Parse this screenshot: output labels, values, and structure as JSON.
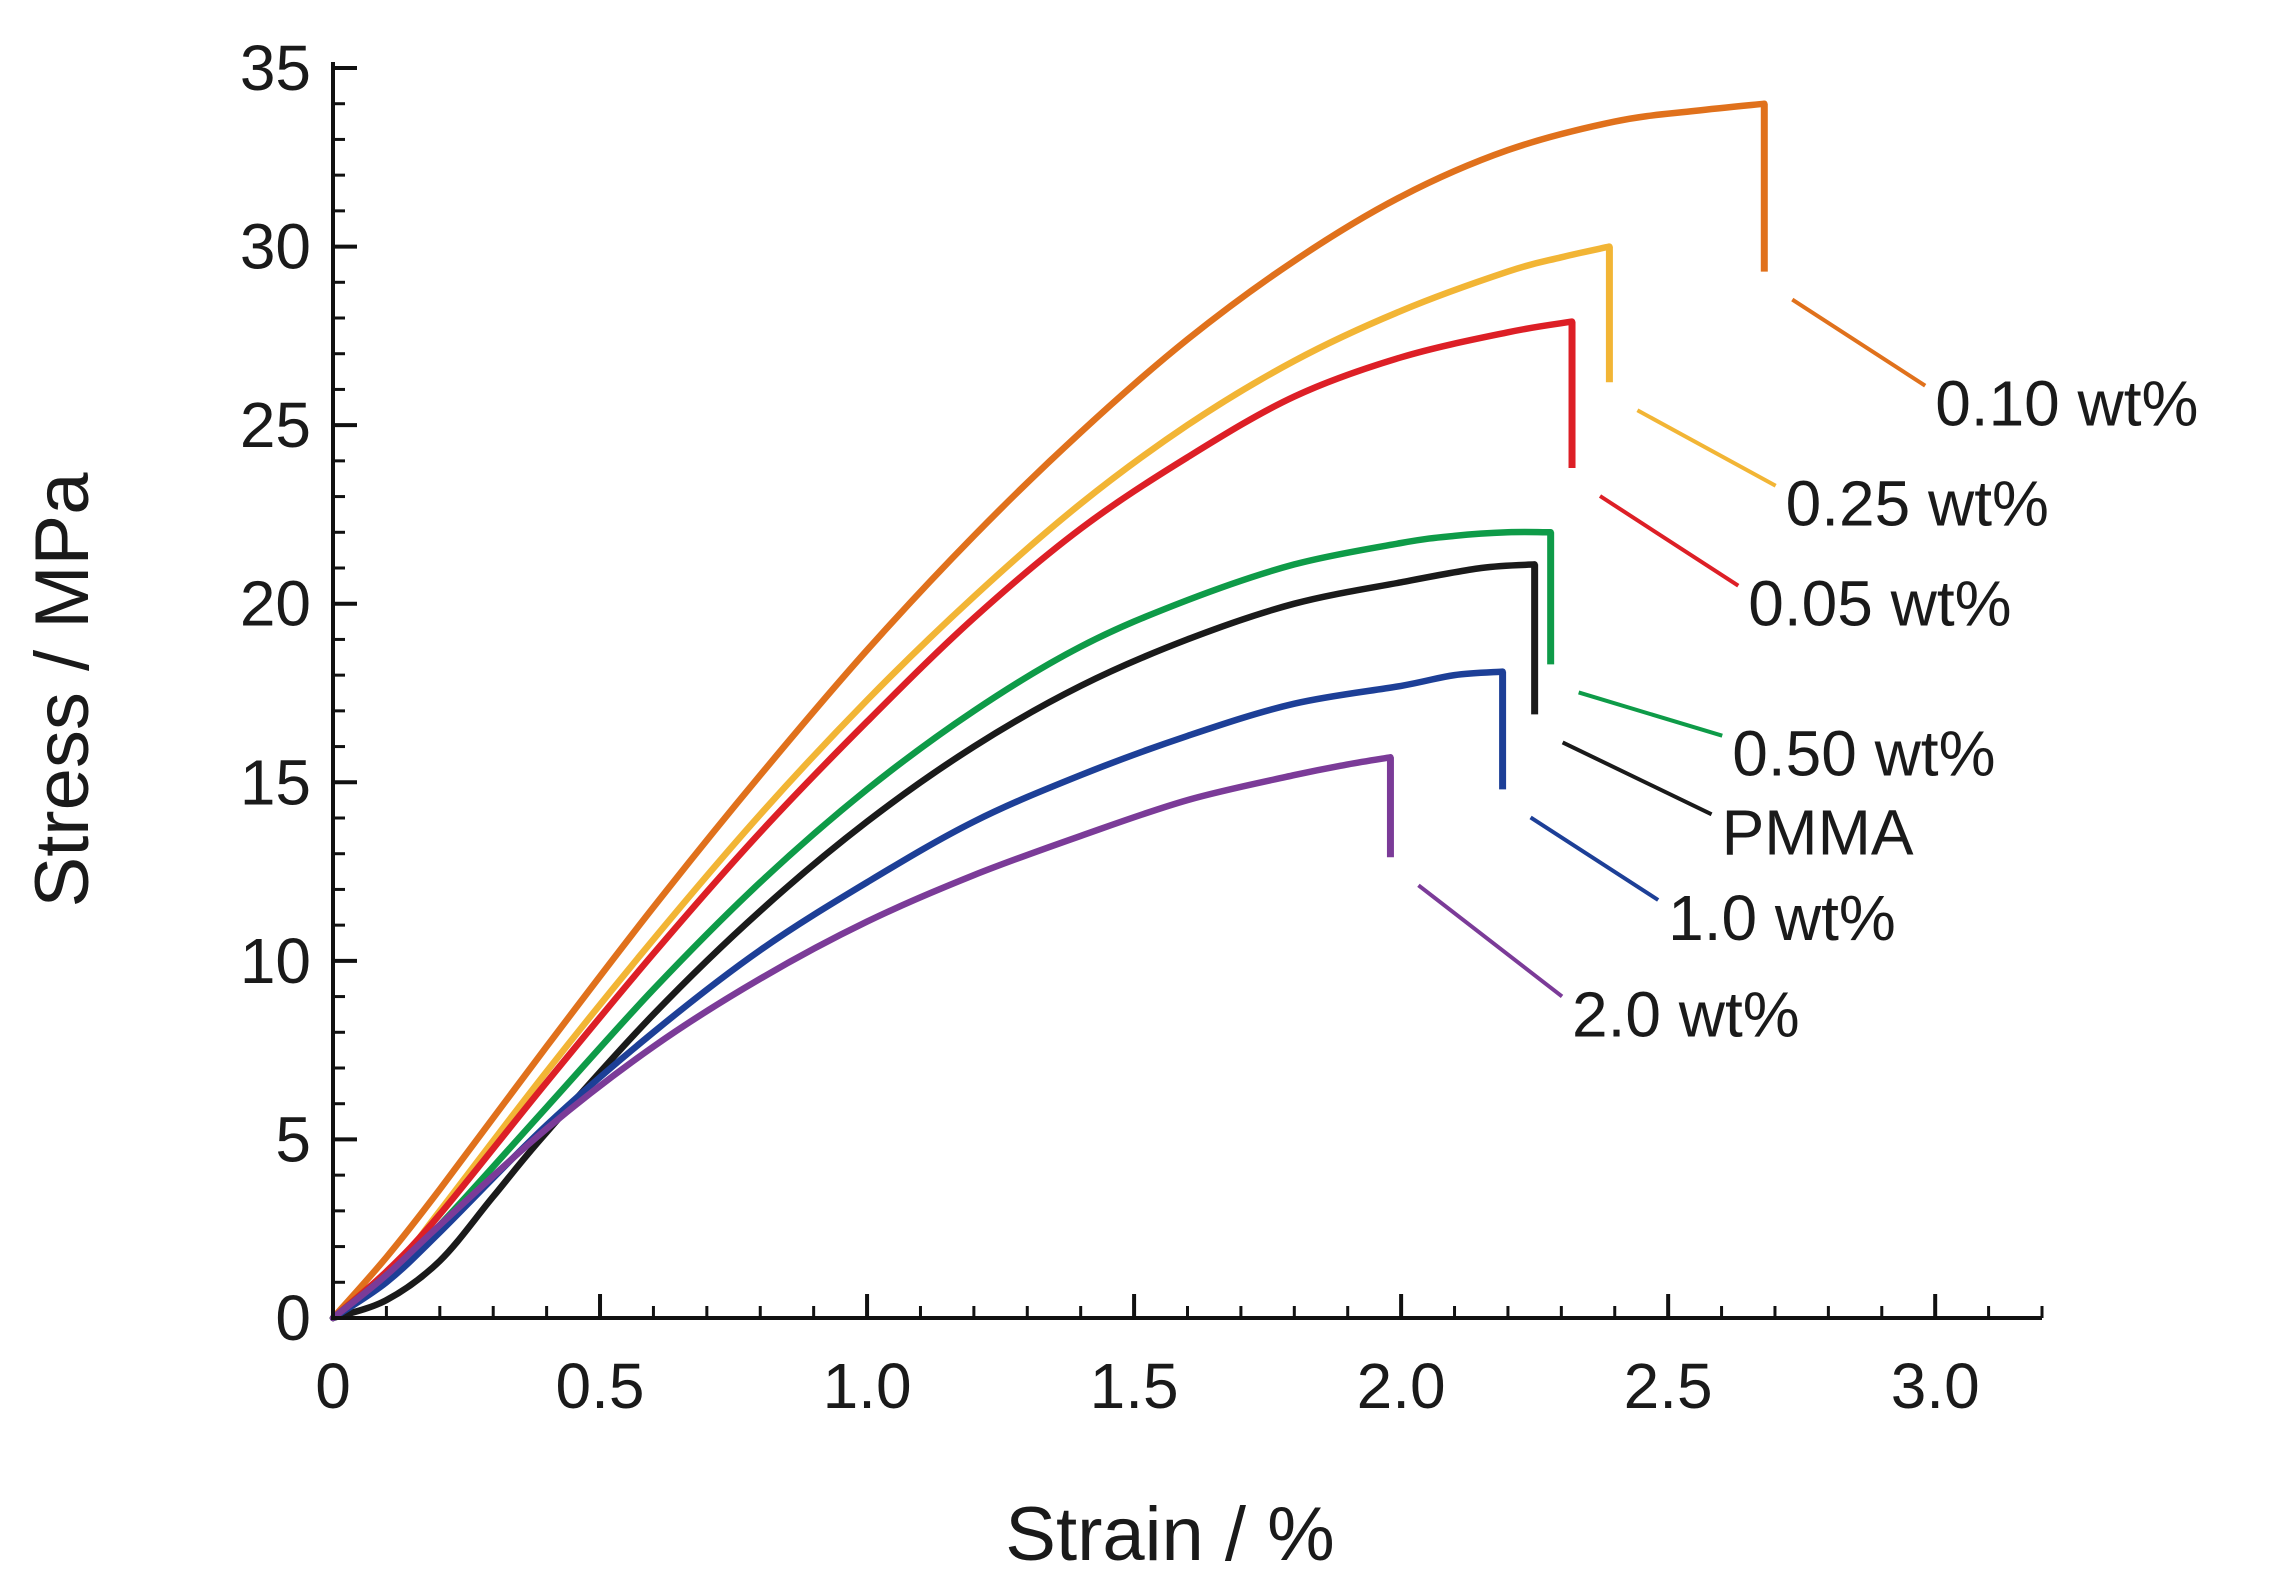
{
  "chart_data": {
    "type": "line",
    "title": "",
    "xlabel": "Strain / %",
    "ylabel": "Stress / MPa",
    "xlim": [
      0,
      3.2
    ],
    "ylim": [
      0,
      35
    ],
    "x_ticks": [
      {
        "value": 0,
        "label": "0"
      },
      {
        "value": 0.5,
        "label": "0.5"
      },
      {
        "value": 1.0,
        "label": "1.0"
      },
      {
        "value": 1.5,
        "label": "1.5"
      },
      {
        "value": 2.0,
        "label": "2.0"
      },
      {
        "value": 2.5,
        "label": "2.5"
      },
      {
        "value": 3.0,
        "label": "3.0"
      }
    ],
    "y_ticks": [
      {
        "value": 0,
        "label": "0"
      },
      {
        "value": 5,
        "label": "5"
      },
      {
        "value": 10,
        "label": "10"
      },
      {
        "value": 15,
        "label": "15"
      },
      {
        "value": 20,
        "label": "20"
      },
      {
        "value": 25,
        "label": "25"
      },
      {
        "value": 30,
        "label": "30"
      },
      {
        "value": 35,
        "label": "35"
      }
    ],
    "x_minor_step": 0.1,
    "y_minor_step": 1,
    "grid": false,
    "legend": "inline labels at right of curves",
    "series": [
      {
        "name": "0.10 wt%",
        "color": "#e0711c",
        "x": [
          0,
          0.1,
          0.2,
          0.4,
          0.6,
          0.8,
          1.0,
          1.2,
          1.4,
          1.6,
          1.8,
          2.0,
          2.2,
          2.4,
          2.55,
          2.68
        ],
        "y": [
          0,
          1.7,
          3.6,
          7.6,
          11.5,
          15.2,
          18.7,
          21.9,
          24.8,
          27.4,
          29.6,
          31.4,
          32.7,
          33.5,
          33.8,
          34.0
        ],
        "break_x": 2.68,
        "break_top": 34.0,
        "break_bottom": 29.3,
        "label_anchor": [
          3.0,
          25.6
        ]
      },
      {
        "name": "0.25 wt%",
        "color": "#f2b535",
        "x": [
          0,
          0.1,
          0.2,
          0.4,
          0.6,
          0.8,
          1.0,
          1.2,
          1.4,
          1.6,
          1.8,
          2.0,
          2.2,
          2.3,
          2.39
        ],
        "y": [
          0,
          1.1,
          3.0,
          6.9,
          10.6,
          14.1,
          17.3,
          20.2,
          22.8,
          25.0,
          26.8,
          28.2,
          29.3,
          29.7,
          30.0
        ],
        "break_x": 2.39,
        "break_top": 30.0,
        "break_bottom": 26.2,
        "label_anchor": [
          2.72,
          22.8
        ]
      },
      {
        "name": "0.05 wt%",
        "color": "#dd1f26",
        "x": [
          0,
          0.1,
          0.2,
          0.4,
          0.6,
          0.8,
          1.0,
          1.2,
          1.4,
          1.6,
          1.8,
          2.0,
          2.2,
          2.32
        ],
        "y": [
          0,
          1.3,
          2.9,
          6.6,
          10.2,
          13.6,
          16.7,
          19.6,
          22.1,
          24.1,
          25.8,
          26.9,
          27.6,
          27.9
        ],
        "break_x": 2.32,
        "break_top": 27.9,
        "break_bottom": 23.8,
        "label_anchor": [
          2.65,
          20.0
        ]
      },
      {
        "name": "0.50 wt%",
        "color": "#0e9b48",
        "x": [
          0,
          0.1,
          0.2,
          0.4,
          0.6,
          0.8,
          1.0,
          1.2,
          1.4,
          1.6,
          1.8,
          2.0,
          2.1,
          2.2,
          2.28
        ],
        "y": [
          0,
          1.2,
          2.6,
          5.9,
          9.2,
          12.2,
          14.8,
          17.0,
          18.8,
          20.1,
          21.1,
          21.7,
          21.9,
          22.0,
          22.0
        ],
        "break_x": 2.28,
        "break_top": 22.0,
        "break_bottom": 18.3,
        "label_anchor": [
          2.62,
          15.8
        ]
      },
      {
        "name": "PMMA",
        "color": "#1a1a1a",
        "x": [
          0,
          0.1,
          0.2,
          0.3,
          0.4,
          0.6,
          0.8,
          1.0,
          1.2,
          1.4,
          1.6,
          1.8,
          2.0,
          2.15,
          2.25
        ],
        "y": [
          0,
          0.5,
          1.6,
          3.4,
          5.2,
          8.5,
          11.4,
          13.9,
          16.0,
          17.7,
          19.0,
          20.0,
          20.6,
          21.0,
          21.1
        ],
        "break_x": 2.25,
        "break_top": 21.1,
        "break_bottom": 16.9,
        "label_anchor": [
          2.6,
          13.6
        ]
      },
      {
        "name": "1.0 wt%",
        "color": "#1d3f97",
        "x": [
          0,
          0.1,
          0.2,
          0.4,
          0.6,
          0.8,
          1.0,
          1.2,
          1.4,
          1.6,
          1.8,
          2.0,
          2.1,
          2.19
        ],
        "y": [
          0,
          1.0,
          2.4,
          5.4,
          8.0,
          10.3,
          12.2,
          13.9,
          15.2,
          16.3,
          17.2,
          17.7,
          18.0,
          18.1
        ],
        "break_x": 2.19,
        "break_top": 18.1,
        "break_bottom": 14.8,
        "label_anchor": [
          2.5,
          11.2
        ]
      },
      {
        "name": "2.0 wt%",
        "color": "#7b3b98",
        "x": [
          0,
          0.1,
          0.2,
          0.4,
          0.6,
          0.8,
          1.0,
          1.2,
          1.4,
          1.6,
          1.8,
          1.9,
          1.98
        ],
        "y": [
          0,
          1.2,
          2.6,
          5.3,
          7.6,
          9.5,
          11.1,
          12.4,
          13.5,
          14.5,
          15.2,
          15.5,
          15.7
        ],
        "break_x": 1.98,
        "break_top": 15.7,
        "break_bottom": 12.9,
        "label_anchor": [
          2.32,
          8.5
        ]
      }
    ]
  }
}
